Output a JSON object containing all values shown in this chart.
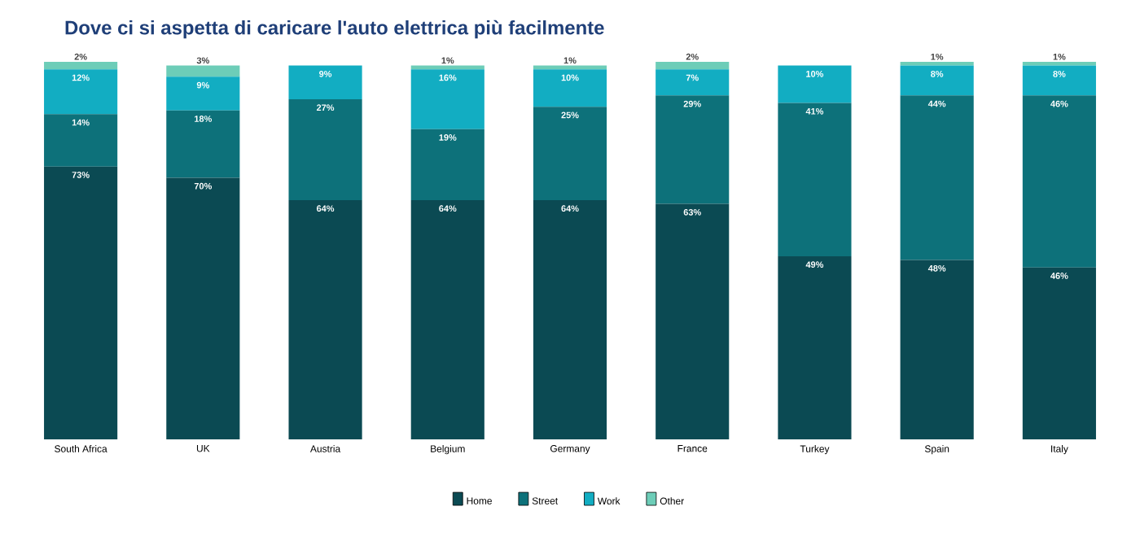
{
  "chart_data": {
    "type": "bar",
    "stacked": true,
    "title": "Dove ci si aspetta di caricare l'auto elettrica più facilmente",
    "categories": [
      "South Africa",
      "UK",
      "Austria",
      "Belgium",
      "Germany",
      "France",
      "Turkey",
      "Spain",
      "Italy"
    ],
    "series": [
      {
        "name": "Home",
        "color": "#0b4a53",
        "values": [
          73,
          70,
          64,
          64,
          64,
          63,
          49,
          48,
          46
        ],
        "value_labels": [
          "73%",
          "70%",
          "64%",
          "64%",
          "64%",
          "63%",
          "49%",
          "48%",
          "46%"
        ]
      },
      {
        "name": "Street",
        "color": "#0d717a",
        "values": [
          14,
          18,
          27,
          19,
          25,
          29,
          41,
          44,
          46
        ],
        "value_labels": [
          "14%",
          "18%",
          "27%",
          "19%",
          "25%",
          "29%",
          "41%",
          "44%",
          "46%"
        ]
      },
      {
        "name": "Work",
        "color": "#12adc2",
        "values": [
          12,
          9,
          9,
          16,
          10,
          7,
          10,
          8,
          8
        ],
        "value_labels": [
          "12%",
          "9%",
          "9%",
          "16%",
          "10%",
          "7%",
          "10%",
          "8%",
          "8%"
        ]
      },
      {
        "name": "Other",
        "color": "#6dcdb8",
        "values": [
          2,
          3,
          null,
          1,
          1,
          2,
          null,
          1,
          1
        ],
        "value_labels": [
          "2%",
          "3%",
          null,
          "1%",
          "1%",
          "2%",
          null,
          "1%",
          "1%"
        ]
      }
    ],
    "legend": "bottom"
  }
}
